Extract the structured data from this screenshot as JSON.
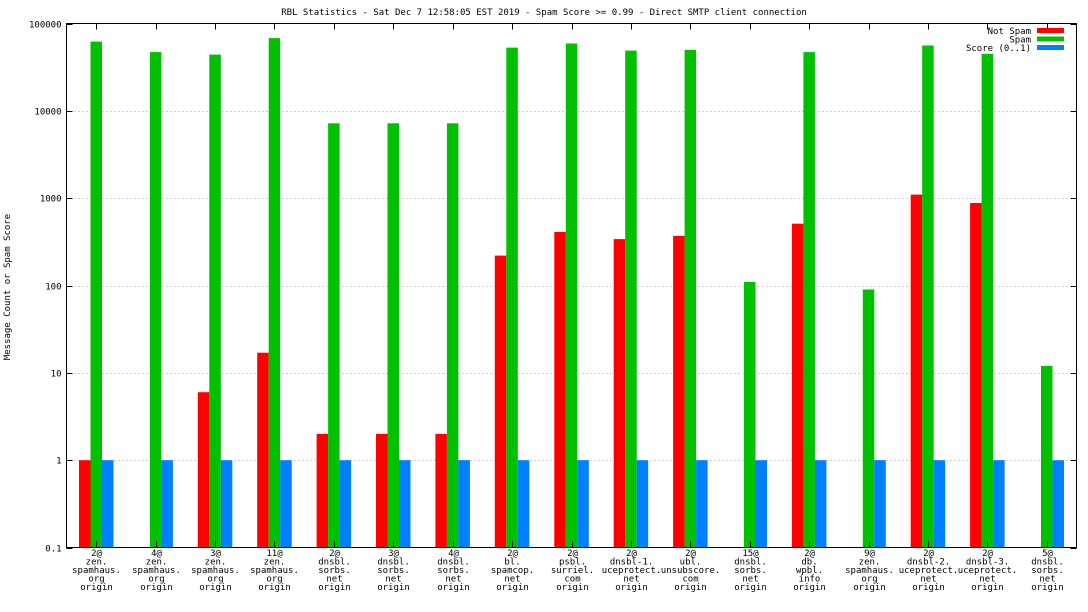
{
  "chart_data": {
    "type": "bar",
    "title": "RBL Statistics - Sat Dec  7 12:58:05 EST 2019 - Spam Score >= 0.99 - Direct SMTP client connection",
    "xlabel": "",
    "ylabel": "Message Count or Spam Score",
    "yscale": "log",
    "ylim": [
      0.1,
      100000
    ],
    "yticks": [
      "0.1",
      "1",
      "10",
      "100",
      "1000",
      "10000",
      "100000"
    ],
    "grid": true,
    "legend_position": "top-right",
    "categories": [
      [
        "2@",
        "zen.",
        "spamhaus.",
        "org",
        "origin"
      ],
      [
        "4@",
        "zen.",
        "spamhaus.",
        "org",
        "origin"
      ],
      [
        "3@",
        "zen.",
        "spamhaus.",
        "org",
        "origin"
      ],
      [
        "11@",
        "zen.",
        "spamhaus.",
        "org",
        "origin"
      ],
      [
        "2@",
        "dnsbl.",
        "sorbs.",
        "net",
        "origin"
      ],
      [
        "3@",
        "dnsbl.",
        "sorbs.",
        "net",
        "origin"
      ],
      [
        "4@",
        "dnsbl.",
        "sorbs.",
        "net",
        "origin"
      ],
      [
        "2@",
        "bl.",
        "spamcop.",
        "net",
        "origin"
      ],
      [
        "2@",
        "psbl.",
        "surriel.",
        "com",
        "origin"
      ],
      [
        "2@",
        "dnsbl-1.",
        "uceprotect.",
        "net",
        "origin"
      ],
      [
        "2@",
        "ubl.",
        "unsubscore.",
        "com",
        "origin"
      ],
      [
        "15@",
        "dnsbl.",
        "sorbs.",
        "net",
        "origin"
      ],
      [
        "2@",
        "db.",
        "wpbl.",
        "info",
        "origin"
      ],
      [
        "9@",
        "zen.",
        "spamhaus.",
        "org",
        "origin"
      ],
      [
        "2@",
        "dnsbl-2.",
        "uceprotect.",
        "net",
        "origin"
      ],
      [
        "2@",
        "dnsbl-3.",
        "uceprotect.",
        "net",
        "origin"
      ],
      [
        "5@",
        "dnsbl.",
        "sorbs.",
        "net",
        "origin"
      ]
    ],
    "series": [
      {
        "name": "Not Spam",
        "color": "#ff0000",
        "values": [
          1,
          null,
          6,
          17,
          2,
          2,
          2,
          220,
          410,
          340,
          370,
          null,
          510,
          null,
          1100,
          880,
          null
        ]
      },
      {
        "name": "Spam",
        "color": "#00c000",
        "values": [
          62000,
          47000,
          44000,
          68000,
          7200,
          7200,
          7200,
          53000,
          59000,
          49000,
          50000,
          110,
          47000,
          90,
          56000,
          45000,
          12
        ]
      },
      {
        "name": "Score (0..1)",
        "color": "#0080ff",
        "values": [
          1,
          1,
          1,
          1,
          1,
          1,
          1,
          1,
          1,
          1,
          1,
          1,
          1,
          1,
          1,
          1,
          1
        ]
      }
    ]
  }
}
